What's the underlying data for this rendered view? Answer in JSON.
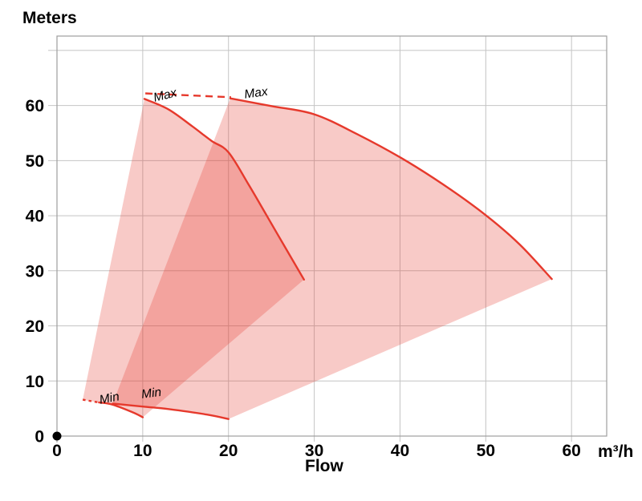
{
  "chart_data": {
    "type": "area",
    "title": "Meters",
    "xlabel": "Flow",
    "x_unit": "m³/h",
    "x_ticks": [
      0,
      10,
      20,
      30,
      40,
      50,
      60
    ],
    "y_ticks": [
      0,
      10,
      20,
      30,
      40,
      50,
      60
    ],
    "x_grid": [
      10,
      20,
      30,
      40,
      50,
      60
    ],
    "y_grid": [
      10,
      20,
      30,
      40,
      50,
      60,
      70
    ],
    "xlim": [
      0,
      64.1
    ],
    "ylim": [
      0,
      72.6
    ],
    "grid": true,
    "legend": "none",
    "series": [
      {
        "name": "pump1-max",
        "label": "Max",
        "points": [
          [
            10.2,
            61.2
          ],
          [
            13,
            59.3
          ],
          [
            15.8,
            56.2
          ],
          [
            18,
            53.6
          ],
          [
            20,
            51.5
          ],
          [
            22.4,
            45.5
          ],
          [
            25.7,
            36.7
          ],
          [
            28.8,
            28.4
          ]
        ]
      },
      {
        "name": "pump1-min",
        "label": "Min",
        "points": [
          [
            4.9,
            6.1
          ],
          [
            6.5,
            5.7
          ],
          [
            9,
            4.2
          ],
          [
            10,
            3.4
          ]
        ],
        "lead_dash": [
          [
            3.0,
            6.6
          ],
          [
            4.9,
            6.1
          ]
        ]
      },
      {
        "name": "pump2-max",
        "label": "Max",
        "points": [
          [
            20.2,
            61.3
          ],
          [
            25,
            59.9
          ],
          [
            30,
            58.4
          ],
          [
            35,
            54.8
          ],
          [
            40,
            50.6
          ],
          [
            45,
            45.7
          ],
          [
            50,
            40.1
          ],
          [
            54,
            34.7
          ],
          [
            57.7,
            28.5
          ]
        ]
      },
      {
        "name": "pump2-min",
        "label": "Min",
        "points": [
          [
            6.5,
            5.9
          ],
          [
            10,
            5.35
          ],
          [
            13,
            4.9
          ],
          [
            17.5,
            3.9
          ],
          [
            20,
            3.1
          ]
        ]
      }
    ],
    "envelopes": [
      {
        "name": "pump1-envelope",
        "min": "pump1-min",
        "max": "pump1-max"
      },
      {
        "name": "pump2-envelope",
        "min": "pump2-min",
        "max": "pump2-max"
      }
    ],
    "dashed_connector": {
      "name": "max-speed-connector",
      "points": [
        [
          10.3,
          62.2
        ],
        [
          20.3,
          61.5
        ]
      ]
    },
    "annotations": [
      {
        "text": "Max",
        "x": 12.6,
        "y": 61.9,
        "rotate": -14
      },
      {
        "text": "Max",
        "x": 23.2,
        "y": 62.3,
        "rotate": -8
      },
      {
        "text": "Min",
        "x": 6.1,
        "y": 6.9,
        "rotate": -11
      },
      {
        "text": "Min",
        "x": 11.0,
        "y": 7.8,
        "rotate": -7
      }
    ],
    "origin_marker": {
      "x": 0,
      "y": 0
    },
    "colors": {
      "curve": "#e6392c",
      "fill": "rgba(230,60,48,0.27)",
      "grid": "#c4c4c4",
      "axis": "#9e9e9e",
      "text": "#000000",
      "dot": "#000000"
    }
  }
}
